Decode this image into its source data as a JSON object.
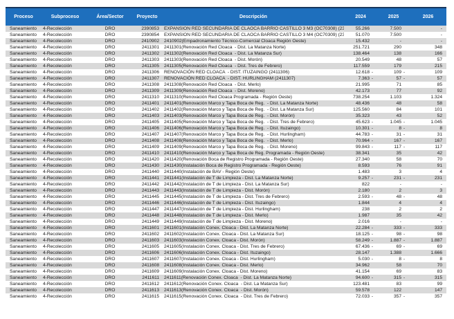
{
  "colors": {
    "header_bg": "#1e6fbd",
    "header_text": "#ffffff",
    "row_stripe": "#d9d9d9",
    "top_border": "#17365d",
    "body_text": "#1a1a1a"
  },
  "table": {
    "headers": [
      "Proceso",
      "Subproceso",
      "Área/Sector",
      "Proyecto",
      "Descripción",
      "2024",
      "2025",
      "2026"
    ],
    "row_common": {
      "proceso": "Saneamiento",
      "subproceso": "4-Recolección",
      "area_sector": "DRO"
    },
    "row_fields": [
      "proyecto",
      "descripcion",
      "y2024",
      "tail2024",
      "y2025",
      "tail2025",
      "y2026"
    ],
    "rows": [
      [
        "2390853",
        "EXPANSION RED SECUNDARIA DE CLAOCA BARRIO CASTILLO 3 M3 (OC70308) (2390853)",
        "55.266",
        "",
        "7.500",
        "",
        "-"
      ],
      [
        "2390854",
        "EXPANSION RED SECUNDARIA DE CLAOCA BARRIO CASTILLO 3 M4 (OC70309) (2390854)",
        "51.070",
        "",
        "7.500",
        "",
        "-"
      ],
      [
        "2410902",
        "2410902(Empadronamiento Técnico-Comercial Cloaca Región Oeste)",
        "15.432",
        "",
        "-",
        "",
        "-"
      ],
      [
        "2411301",
        "2411301(Renovación Red Cloaca  - Dist. La Matanza Norte)",
        "251.721",
        "",
        "290",
        "",
        "348"
      ],
      [
        "2411302",
        "2411302(Renovación Red Cloaca  - Dist. La Matanza Sur)",
        "138.464",
        "",
        "138",
        "",
        "166"
      ],
      [
        "2411303",
        "2411303(Renovación Red Cloaca  - Dist. Morón)",
        "20.549",
        "",
        "48",
        "",
        "57"
      ],
      [
        "2411305",
        "2411305(Renovación Red Cloaca  - Dist. Tres de Febrero)",
        "117.559",
        "",
        "179",
        "",
        "215"
      ],
      [
        "2411306",
        "RENOVACIÓN RED CLOACA  - DIST. ITUZAINGO (2411306)",
        "12.618",
        "-",
        "109",
        "-",
        "109"
      ],
      [
        "2411307",
        "RENOVACIÓN RED CLOACA  - DIST. HURLINGHAM (2411307)",
        "7.363",
        "-",
        "57",
        "-",
        "57"
      ],
      [
        "2411308",
        "2411308(Renovación Red Cloaca  - Dist. Merlo)",
        "21.995",
        "",
        "71",
        "",
        "85"
      ],
      [
        "2411309",
        "2411309(Renovación Red Cloaca  - Dist. Moreno)",
        "42.173",
        "",
        "77",
        "",
        "92"
      ],
      [
        "2411310",
        "2411310(Renovación Red Cloaca Programada - Región Oeste)",
        "738.254",
        "",
        "1.103",
        "",
        "1.324"
      ],
      [
        "2411401",
        "2411401(Renovación Marco y Tapa Boca de Reg.  - Dist. La Matanza Norte)",
        "48.436",
        "",
        "48",
        "",
        "58"
      ],
      [
        "2411402",
        "2411402(Renovación Marco y Tapa Boca de Reg.  - Dist. La Matanza Sur)",
        "125.560",
        "",
        "84",
        "",
        "101"
      ],
      [
        "2411403",
        "2411403(Renovación Marco y Tapa Boca de Reg.  - Dist. Morón)",
        "35.323",
        "",
        "43",
        "",
        "52"
      ],
      [
        "2411405",
        "2411405(Renovación Marco y Tapa Boca de Reg.  - Dist. Tres de Febrero)",
        "45.623",
        "-",
        "1.045",
        "-",
        "1.045"
      ],
      [
        "2411406",
        "2411406(Renovación Marco y Tapa Boca de Reg.  - Dist. Ituzaingo)",
        "10.301",
        "-",
        "8",
        "-",
        "8"
      ],
      [
        "2411407",
        "2411407(Renovación Marco y Tapa Boca de Reg.  - Dist. Hurlingham)",
        "44.783",
        "-",
        "31",
        "-",
        "31"
      ],
      [
        "2411408",
        "2411408(Renovación Marco y Tapa Boca de Reg.  - Dist. Merlo)",
        "70.964",
        "-",
        "167",
        "-",
        "167"
      ],
      [
        "2411409",
        "2411409(Renovación Marco y Tapa Boca de Reg.  - Dist. Moreno)",
        "99.843",
        "-",
        "117",
        "-",
        "117"
      ],
      [
        "2411410",
        "2411410(Renovación Marco y Tapa Boca de Reg. Programada - Región Oeste)",
        "38.341",
        "",
        "35",
        "",
        "42"
      ],
      [
        "2411420",
        "2411420(Renovación Boca de Registro Programada - Región Oeste)",
        "27.340",
        "",
        "58",
        "",
        "70"
      ],
      [
        "2411430",
        "2411430(Instalación Boca de Registro Programada - Región Oeste)",
        "8.593",
        "",
        "76",
        "",
        "91"
      ],
      [
        "2411440",
        "2411440(Instalación de BAV - Región Oeste)",
        "1.483",
        "",
        "3",
        "",
        "4"
      ],
      [
        "2411441",
        "2411441(Instalación de T de Limpieza - Dist. La Matanza Norte)",
        "9.257",
        "-",
        "231",
        "-",
        "231"
      ],
      [
        "2411442",
        "2411442(Instalación de T de Limpieza - Dist. La Matanza Sur)",
        "822",
        "",
        "-",
        "",
        "-"
      ],
      [
        "2411443",
        "2411443(Instalación de T de Limpieza - Dist. Morón)",
        "2.180",
        "",
        "2",
        "",
        "3"
      ],
      [
        "2411445",
        "2411445(Instalación de T de Limpieza - Dist. Tres de Febrero)",
        "2.593",
        "-",
        "48",
        "-",
        "48"
      ],
      [
        "2411446",
        "2411446(Instalación de T de Limpieza - Dist. Ituzaingo)",
        "1.844",
        "",
        "4",
        "",
        "4"
      ],
      [
        "2411447",
        "2411447(Instalación de T de Limpieza - Dist. Hurlingham)",
        "238",
        "",
        "2",
        "",
        "2"
      ],
      [
        "2411448",
        "2411448(Instalación de T de Limpieza - Dist. Merlo)",
        "1.987",
        "",
        "35",
        "",
        "42"
      ],
      [
        "2411449",
        "2411449(Instalación de T de Limpieza - Dist. Moreno)",
        "2.016",
        "",
        "-",
        "",
        "-"
      ],
      [
        "2411601",
        "2411601(Instalación Conex. Cloaca - Dist. La Matanza Norte)",
        "22.284",
        "-",
        "333",
        "-",
        "333"
      ],
      [
        "2411602",
        "2411602(Instalación Conex. Cloaca - Dist. La Matanza Sur)",
        "18.125",
        "-",
        "98",
        "-",
        "98"
      ],
      [
        "2411603",
        "2411603(Instalación Conex. Cloaca - Dist. Morón)",
        "58.249",
        "-",
        "1.887",
        "-",
        "1.887"
      ],
      [
        "2411605",
        "2411605(Instalación Conex. Cloaca - Dist. Tres de Febrero)",
        "67.436",
        "-",
        "69",
        "-",
        "69"
      ],
      [
        "2411606",
        "2411606(Instalación Conex. Cloaca - Dist. Ituzaingo)",
        "28.147",
        "",
        "1.388",
        "",
        "1.666"
      ],
      [
        "2411607",
        "2411607(Instalación Conex. Cloaca - Dist. Hurlingham)",
        "5.030",
        "-",
        "8",
        "-",
        "8"
      ],
      [
        "2411608",
        "2411608(Instalación Conex. Cloaca - Dist. Merlo)",
        "34.962",
        "",
        "58",
        "",
        "70"
      ],
      [
        "2411609",
        "2411609(Instalación Conex. Cloaca - Dist. Moreno)",
        "41.154",
        "",
        "69",
        "",
        "83"
      ],
      [
        "2411611",
        "2411611(Renovación Conex. Cloaca  - Dist. La Matanza Norte)",
        "94.600",
        "-",
        "315",
        "-",
        "315"
      ],
      [
        "2411612",
        "2411612(Renovación Conex. Cloaca  - Dist. La Matanza Sur)",
        "123.481",
        "",
        "83",
        "",
        "99"
      ],
      [
        "2411613",
        "2411613(Renovación Conex. Cloaca  - Dist. Morón)",
        "59.578",
        "",
        "122",
        "",
        "147"
      ],
      [
        "2411615",
        "2411615(Renovación Conex. Cloaca  - Dist. Tres de Febrero)",
        "72.033",
        "-",
        "357",
        "-",
        "357"
      ]
    ]
  }
}
